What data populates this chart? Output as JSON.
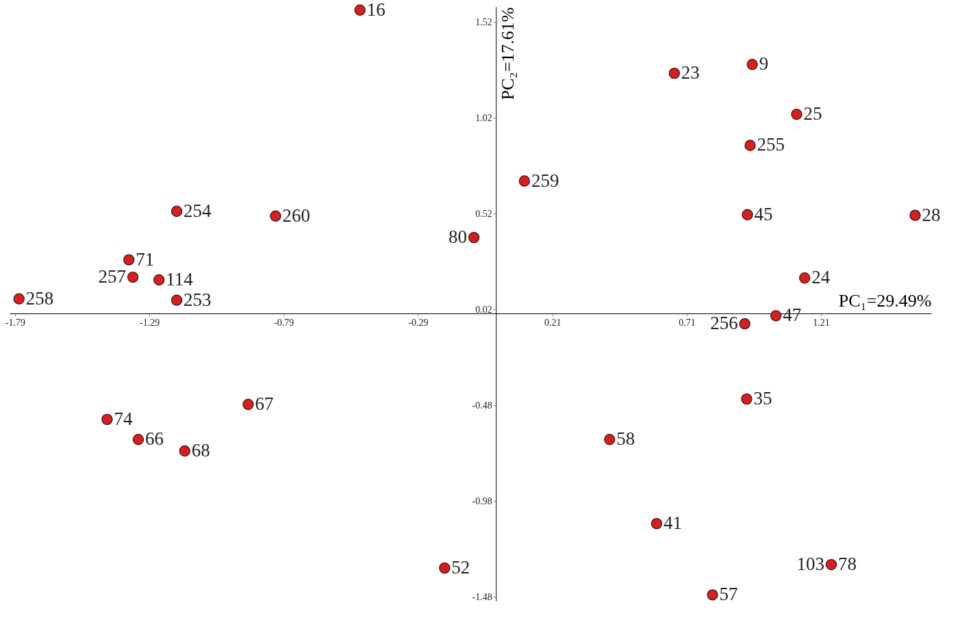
{
  "chart_data": {
    "type": "scatter",
    "xlabel": "PC₁=29.49%",
    "ylabel": "PC₂=17.61%",
    "x": [
      -0.506,
      0.664,
      0.954,
      1.119,
      0.946,
      0.106,
      0.936,
      1.56,
      -0.082,
      1.149,
      0.926,
      1.042,
      -1.188,
      -0.82,
      -1.366,
      -1.351,
      -1.254,
      -1.775,
      -1.188,
      -0.922,
      -1.447,
      -1.331,
      -1.158,
      0.933,
      0.423,
      0.598,
      -0.191,
      1.248,
      0.806
    ],
    "values": [
      1.583,
      1.253,
      1.299,
      1.039,
      0.877,
      0.691,
      0.515,
      0.512,
      0.396,
      0.185,
      -0.054,
      -0.012,
      0.533,
      0.508,
      0.28,
      0.189,
      0.175,
      0.076,
      0.069,
      -0.475,
      -0.553,
      -0.658,
      -0.718,
      -0.447,
      -0.658,
      -1.097,
      -1.329,
      -1.311,
      -1.469
    ],
    "annotations": [
      {
        "text": "16",
        "x": -0.506,
        "y": 1.583
      },
      {
        "text": "23",
        "x": 0.664,
        "y": 1.253
      },
      {
        "text": "9",
        "x": 0.954,
        "y": 1.299
      },
      {
        "text": "25",
        "x": 1.119,
        "y": 1.039
      },
      {
        "text": "255",
        "x": 0.946,
        "y": 0.877
      },
      {
        "text": "259",
        "x": 0.106,
        "y": 0.691
      },
      {
        "text": "45",
        "x": 0.936,
        "y": 0.515
      },
      {
        "text": "28",
        "x": 1.56,
        "y": 0.512
      },
      {
        "text": "80",
        "x": -0.082,
        "y": 0.396
      },
      {
        "text": "24",
        "x": 1.149,
        "y": 0.185
      },
      {
        "text": "256",
        "x": 0.926,
        "y": -0.054
      },
      {
        "text": "47",
        "x": 1.042,
        "y": -0.012
      },
      {
        "text": "254",
        "x": -1.188,
        "y": 0.533
      },
      {
        "text": "260",
        "x": -0.82,
        "y": 0.508
      },
      {
        "text": "71",
        "x": -1.366,
        "y": 0.28
      },
      {
        "text": "257",
        "x": -1.351,
        "y": 0.189
      },
      {
        "text": "114",
        "x": -1.254,
        "y": 0.175
      },
      {
        "text": "258",
        "x": -1.775,
        "y": 0.076
      },
      {
        "text": "253",
        "x": -1.188,
        "y": 0.069
      },
      {
        "text": "67",
        "x": -0.922,
        "y": -0.475
      },
      {
        "text": "74",
        "x": -1.447,
        "y": -0.553
      },
      {
        "text": "66",
        "x": -1.331,
        "y": -0.658
      },
      {
        "text": "68",
        "x": -1.158,
        "y": -0.718
      },
      {
        "text": "35",
        "x": 0.933,
        "y": -0.447
      },
      {
        "text": "58",
        "x": 0.423,
        "y": -0.658
      },
      {
        "text": "41",
        "x": 0.598,
        "y": -1.097
      },
      {
        "text": "52",
        "x": -0.191,
        "y": -1.329
      },
      {
        "text": "103",
        "x": 1.248,
        "y": -1.311
      },
      {
        "text": "78",
        "x": 1.248,
        "y": -1.311
      },
      {
        "text": "57",
        "x": 0.806,
        "y": -1.469
      }
    ],
    "color": "#d42020",
    "marker": "circle",
    "grid": false,
    "xlim": [
      -1.81,
      1.62
    ],
    "ylim": [
      -1.5,
      1.6
    ],
    "xticks": [
      -1.79,
      -1.29,
      -0.79,
      -0.29,
      0.21,
      0.71,
      1.21
    ],
    "yticks": [
      -1.48,
      -0.98,
      -0.48,
      0.02,
      0.52,
      1.02,
      1.52
    ]
  }
}
